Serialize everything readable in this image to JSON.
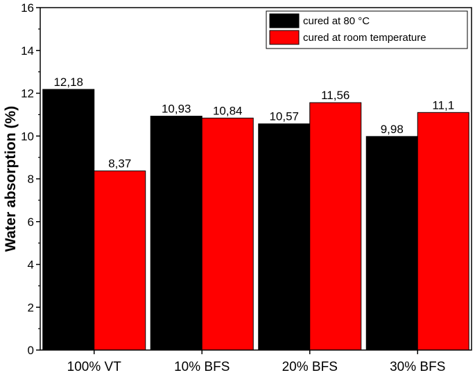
{
  "chart_data": {
    "type": "bar",
    "title": "",
    "xlabel": "",
    "ylabel": "Water absorption  (%)",
    "ylim": [
      0,
      16
    ],
    "yticks": [
      0,
      2,
      4,
      6,
      8,
      10,
      12,
      14,
      16
    ],
    "categories": [
      "100% VT",
      "10% BFS",
      "20% BFS",
      "30% BFS"
    ],
    "series": [
      {
        "name": "cured at 80 °C",
        "color": "#000000",
        "values": [
          12.18,
          10.93,
          10.57,
          9.98
        ],
        "labels": [
          "12,18",
          "10,93",
          "10,57",
          "9,98"
        ]
      },
      {
        "name": "cured at room temperature",
        "color": "#ff0000",
        "values": [
          8.37,
          10.84,
          11.56,
          11.1
        ],
        "labels": [
          "8,37",
          "10,84",
          "11,56",
          "11,1"
        ]
      }
    ],
    "legend_position": "top-right",
    "grid": false
  }
}
